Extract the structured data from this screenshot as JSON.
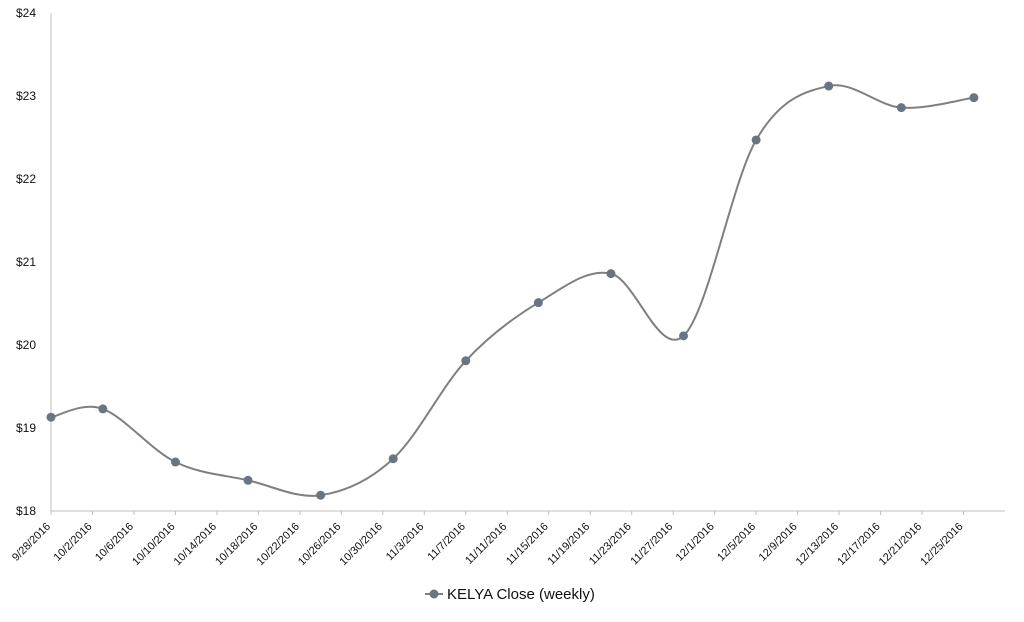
{
  "chart_data": {
    "type": "line",
    "title": "",
    "xlabel": "",
    "ylabel": "",
    "ylim": [
      18,
      24
    ],
    "yticks": [
      "$18",
      "$19",
      "$20",
      "$21",
      "$22",
      "$23",
      "$24"
    ],
    "categories": [
      "9/28/2016",
      "10/2/2016",
      "10/6/2016",
      "10/10/2016",
      "10/14/2016",
      "10/18/2016",
      "10/22/2016",
      "10/26/2016",
      "10/30/2016",
      "11/3/2016",
      "11/7/2016",
      "11/11/2016",
      "11/15/2016",
      "11/19/2016",
      "11/23/2016",
      "11/27/2016",
      "12/1/2016",
      "12/5/2016",
      "12/9/2016",
      "12/13/2016",
      "12/17/2016",
      "12/21/2016",
      "12/25/2016"
    ],
    "series": [
      {
        "name": "KELYA Close (weekly)",
        "color": "#7f7f7f",
        "marker_color": "#6b7582",
        "points": [
          {
            "x": "9/28/2016",
            "y": 19.13
          },
          {
            "x": "10/3/2016",
            "y": 19.23
          },
          {
            "x": "10/10/2016",
            "y": 18.59
          },
          {
            "x": "10/17/2016",
            "y": 18.37
          },
          {
            "x": "10/24/2016",
            "y": 18.19
          },
          {
            "x": "10/31/2016",
            "y": 18.63
          },
          {
            "x": "11/7/2016",
            "y": 19.81
          },
          {
            "x": "11/14/2016",
            "y": 20.51
          },
          {
            "x": "11/21/2016",
            "y": 20.86
          },
          {
            "x": "11/28/2016",
            "y": 20.11
          },
          {
            "x": "12/5/2016",
            "y": 22.47
          },
          {
            "x": "12/12/2016",
            "y": 23.12
          },
          {
            "x": "12/19/2016",
            "y": 22.86
          },
          {
            "x": "12/26/2016",
            "y": 22.98
          }
        ]
      }
    ],
    "grid": false,
    "legend": "bottom"
  }
}
